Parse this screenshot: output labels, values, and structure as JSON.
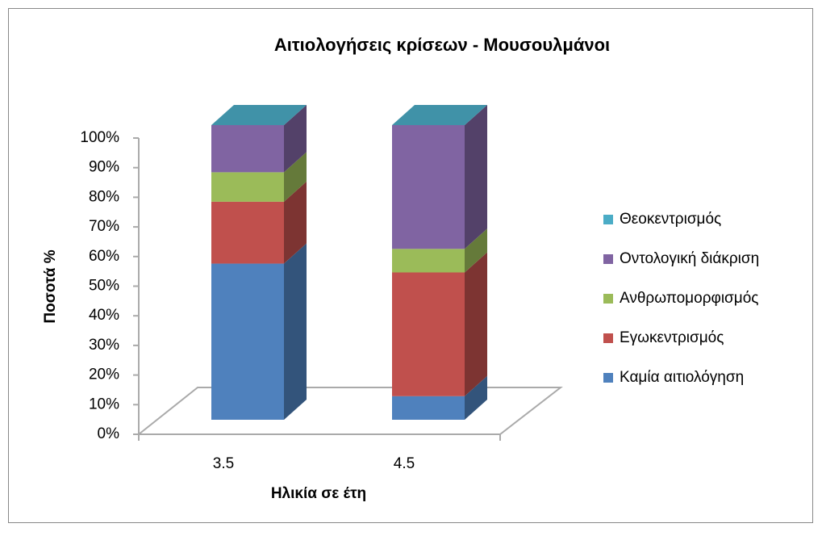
{
  "chart_data": {
    "type": "bar3d_stacked",
    "title": "Αιτιολογήσεις κρίσεων - Μουσουλμάνοι",
    "x_label": "Ηλικία σε έτη",
    "y_label": "Ποσοτά %",
    "categories": [
      "3.5",
      "4.5"
    ],
    "series": [
      {
        "name": "Καμία αιτιολόγηση",
        "color": "#4f81bd",
        "values": [
          53,
          8
        ]
      },
      {
        "name": "Εγωκεντρισμός",
        "color": "#c0504d",
        "values": [
          21,
          42
        ]
      },
      {
        "name": "Ανθρωπομορφισμός",
        "color": "#9bbb59",
        "values": [
          10,
          8
        ]
      },
      {
        "name": "Οντολογική διάκριση",
        "color": "#8064a2",
        "values": [
          16,
          42
        ]
      },
      {
        "name": "Θεοκεντρισμός",
        "color": "#4bacc6",
        "values": [
          0,
          0
        ]
      }
    ],
    "ylim": [
      0,
      100
    ],
    "yticks": [
      {
        "value": 0,
        "label": "0%"
      },
      {
        "value": 10,
        "label": "10%"
      },
      {
        "value": 20,
        "label": "20%"
      },
      {
        "value": 30,
        "label": "30%"
      },
      {
        "value": 40,
        "label": "40%"
      },
      {
        "value": 50,
        "label": "50%"
      },
      {
        "value": 60,
        "label": "60%"
      },
      {
        "value": 70,
        "label": "70%"
      },
      {
        "value": 80,
        "label": "80%"
      },
      {
        "value": 90,
        "label": "90%"
      },
      {
        "value": 100,
        "label": "100%"
      }
    ],
    "legend": "right"
  }
}
